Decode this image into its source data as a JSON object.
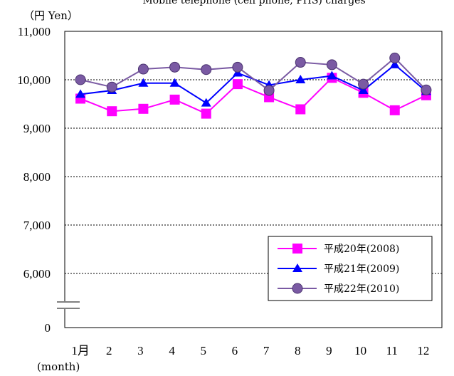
{
  "chart_data": {
    "type": "line",
    "title": "Mobile telephone (cell phone, PHS) charges",
    "ylabel": "（円  Yen）",
    "xlabel": "(month)",
    "categories": [
      "1月",
      "2",
      "3",
      "4",
      "5",
      "6",
      "7",
      "8",
      "9",
      "10",
      "11",
      "12"
    ],
    "y_ticks": [
      "0",
      "6,000",
      "7,000",
      "8,000",
      "9,000",
      "10,000",
      "11,000"
    ],
    "ylim": [
      5000,
      11000
    ],
    "axis_break": true,
    "grid": true,
    "legend_position": "bottom-right",
    "series": [
      {
        "name": "平成20年(2008)",
        "color": "#ff00ff",
        "marker": "square",
        "values": [
          9610,
          9350,
          9400,
          9590,
          9300,
          9910,
          9640,
          9390,
          10040,
          9730,
          9370,
          9680
        ]
      },
      {
        "name": "平成21年(2009)",
        "color": "#0000ff",
        "marker": "triangle",
        "values": [
          9700,
          9780,
          9930,
          9930,
          9520,
          10140,
          9890,
          10000,
          10080,
          9780,
          10310,
          9760
        ]
      },
      {
        "name": "平成22年(2010)",
        "color": "#7a5aa3",
        "marker": "circle",
        "values": [
          10000,
          9850,
          10220,
          10260,
          10210,
          10260,
          9780,
          10360,
          10310,
          9910,
          10450,
          9790
        ]
      }
    ]
  }
}
